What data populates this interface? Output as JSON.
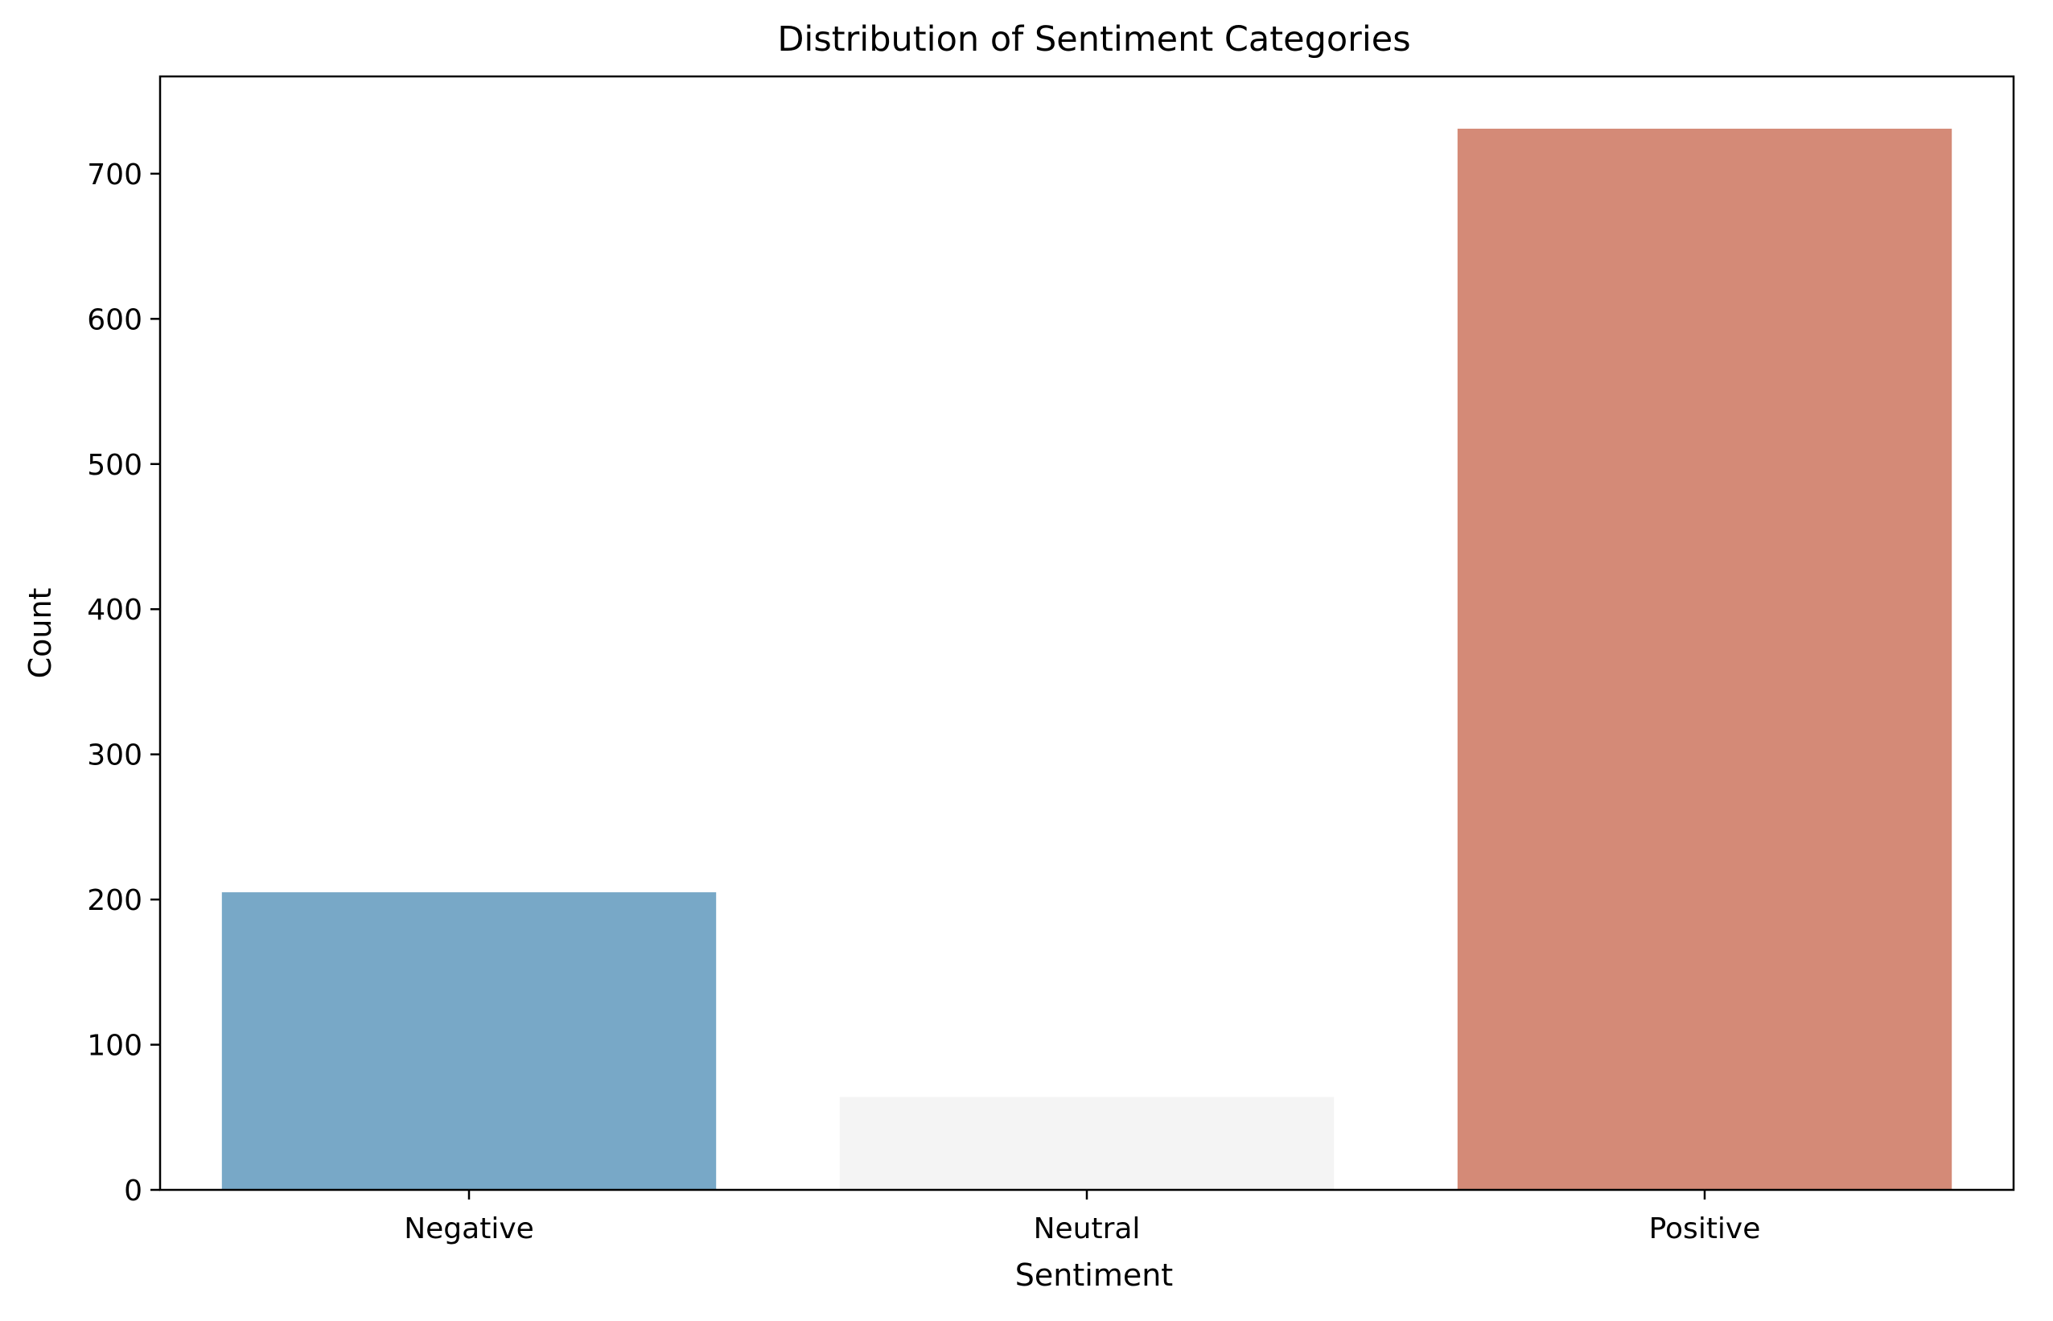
{
  "chart_data": {
    "type": "bar",
    "title": "Distribution of Sentiment Categories",
    "xlabel": "Sentiment",
    "ylabel": "Count",
    "categories": [
      "Negative",
      "Neutral",
      "Positive"
    ],
    "values": [
      205,
      64,
      731
    ],
    "colors": [
      "#78a8c7",
      "#f4f4f4",
      "#d48a77"
    ],
    "ylim": [
      0,
      767
    ],
    "yticks": [
      0,
      100,
      200,
      300,
      400,
      500,
      600,
      700
    ],
    "grid": false,
    "legend": "none"
  }
}
